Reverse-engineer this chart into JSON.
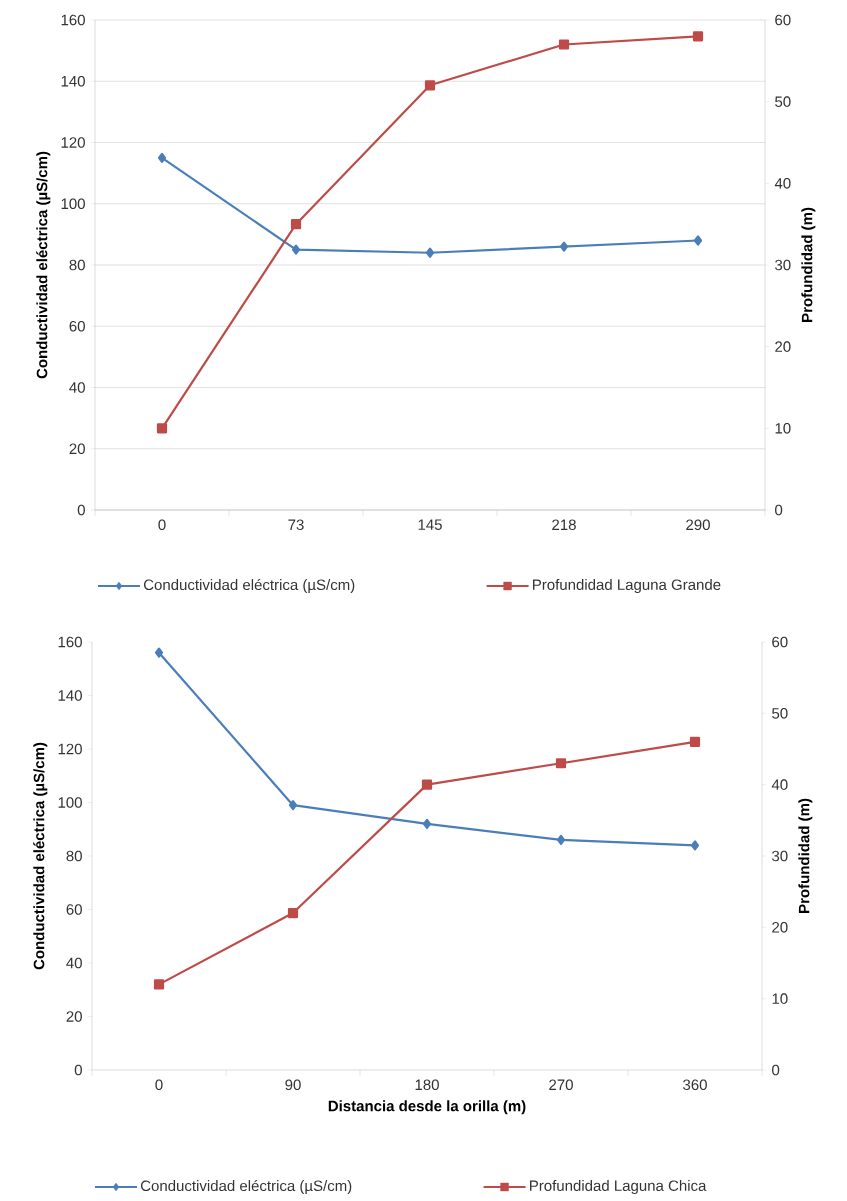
{
  "chart_data": [
    {
      "type": "line",
      "categories": [
        "0",
        "73",
        "145",
        "218",
        "290"
      ],
      "ylabel": "Conductividad eléctrica (µS/cm)",
      "y2label": "Profundidad (m)",
      "ylim": [
        0,
        160
      ],
      "yticks": [
        0,
        20,
        40,
        60,
        80,
        100,
        120,
        140,
        160
      ],
      "y2lim": [
        0,
        60
      ],
      "y2ticks": [
        0,
        10,
        20,
        30,
        40,
        50,
        60
      ],
      "grid": "y",
      "legend": "bottom",
      "series": [
        {
          "name": "Conductividad eléctrica (µS/cm)",
          "color": "#4a7ebb",
          "marker": "diamond",
          "values": [
            115,
            85,
            84,
            86,
            88
          ]
        },
        {
          "name": "Profundidad Laguna Grande",
          "color": "#be4b48",
          "marker": "square",
          "axis": "y2",
          "values": [
            10,
            35,
            52,
            57,
            58
          ]
        }
      ]
    },
    {
      "type": "line",
      "categories": [
        "0",
        "90",
        "180",
        "270",
        "360"
      ],
      "xlabel": "Distancia desde la orilla (m)",
      "ylabel": "Conductividad eléctrica (µS/cm)",
      "y2label": "Profundidad (m)",
      "ylim": [
        0,
        160
      ],
      "yticks": [
        0,
        20,
        40,
        60,
        80,
        100,
        120,
        140,
        160
      ],
      "y2lim": [
        0,
        60
      ],
      "y2ticks": [
        0,
        10,
        20,
        30,
        40,
        50,
        60
      ],
      "legend": "bottom",
      "series": [
        {
          "name": "Conductividad eléctrica (µS/cm)",
          "color": "#4a7ebb",
          "marker": "diamond",
          "values": [
            156,
            99,
            92,
            86,
            84
          ]
        },
        {
          "name": "Profundidad Laguna Chica",
          "color": "#be4b48",
          "marker": "square",
          "axis": "y2",
          "values": [
            12,
            22,
            40,
            43,
            46
          ]
        }
      ]
    }
  ]
}
